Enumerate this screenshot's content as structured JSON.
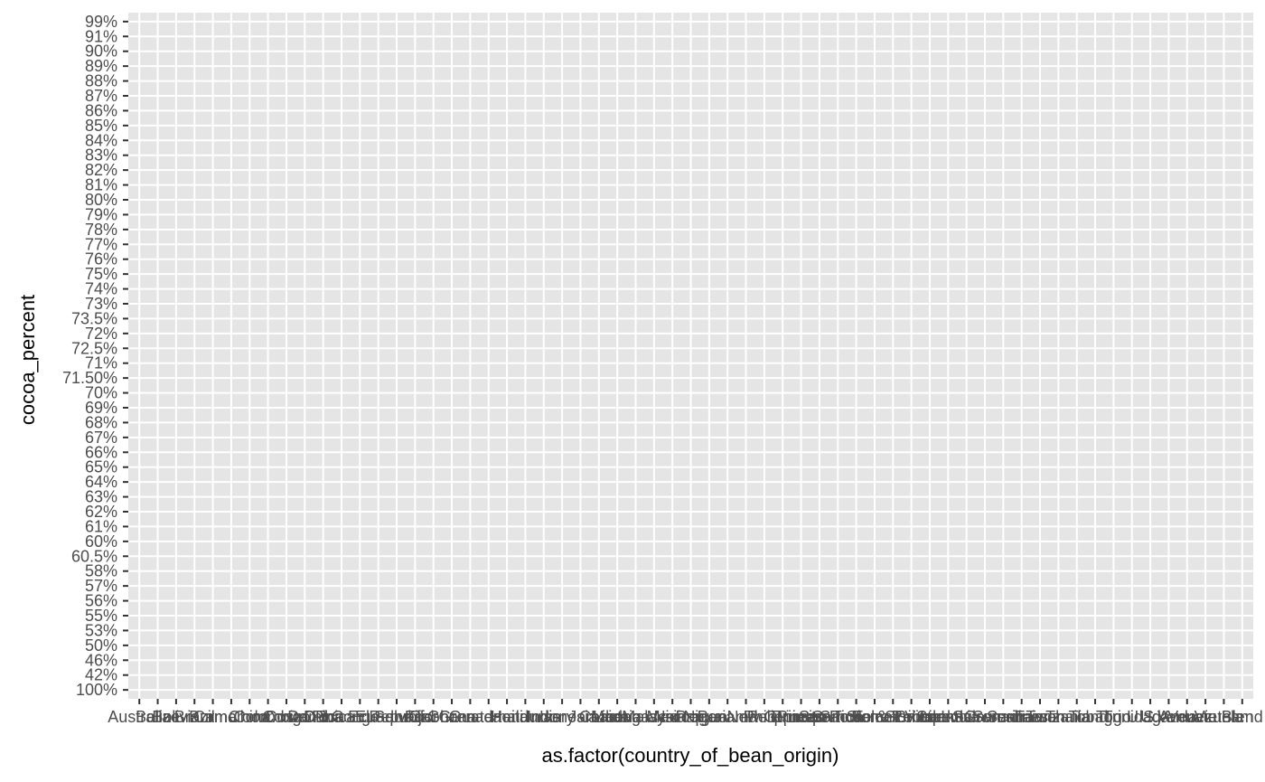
{
  "chart_data": {
    "type": "scatter",
    "xlabel": "as.factor(country_of_bean_origin)",
    "ylabel": "cocoa_percent",
    "x_categories": [
      "Australia",
      "Belize",
      "Bolivia",
      "Brazil",
      "Burma",
      "Cameroon",
      "China",
      "Colombia",
      "Congo",
      "Costa Rica",
      "Cuba",
      "DR Congo",
      "Dominican Republic",
      "Ecuador",
      "El Salvador",
      "Fiji",
      "Gabon",
      "Ghana",
      "Grenada",
      "Guatemala",
      "Haiti",
      "Honduras",
      "India",
      "Indonesia",
      "Ivory Coast",
      "Jamaica",
      "Liberia",
      "Madagascar",
      "Malaysia",
      "Mexico",
      "Nicaragua",
      "Nigeria",
      "Panama",
      "Papua New Guinea",
      "Peru",
      "Philippines",
      "Principe",
      "Puerto Rico",
      "Samoa",
      "Sao Tome",
      "Sao Tome & Principe",
      "Sierra Leone",
      "Solomon Islands",
      "Sri Lanka",
      "St. Lucia",
      "St.Vincent-Grenadines",
      "Sulawesi",
      "Sumatra",
      "Suriname",
      "Taiwan",
      "Tanzania",
      "Thailand",
      "Tobago",
      "Togo",
      "Trinidad",
      "U.S.A.",
      "Uganda",
      "Vanuatu",
      "Venezuela",
      "Vietnam",
      "Blend"
    ],
    "y_categories": [
      "100%",
      "42%",
      "46%",
      "50%",
      "53%",
      "55%",
      "56%",
      "57%",
      "58%",
      "60.5%",
      "60%",
      "61%",
      "62%",
      "63%",
      "64%",
      "65%",
      "66%",
      "67%",
      "68%",
      "69%",
      "70%",
      "71.50%",
      "71%",
      "72.5%",
      "72%",
      "73.5%",
      "73%",
      "74%",
      "75%",
      "76%",
      "77%",
      "78%",
      "79%",
      "80%",
      "81%",
      "82%",
      "83%",
      "84%",
      "85%",
      "86%",
      "87%",
      "88%",
      "89%",
      "90%",
      "91%",
      "99%"
    ],
    "points": [],
    "grid": true,
    "background": "#e5e5e5",
    "gridline_color": "#ffffff",
    "tick_label_color": "#4d4d4d"
  }
}
